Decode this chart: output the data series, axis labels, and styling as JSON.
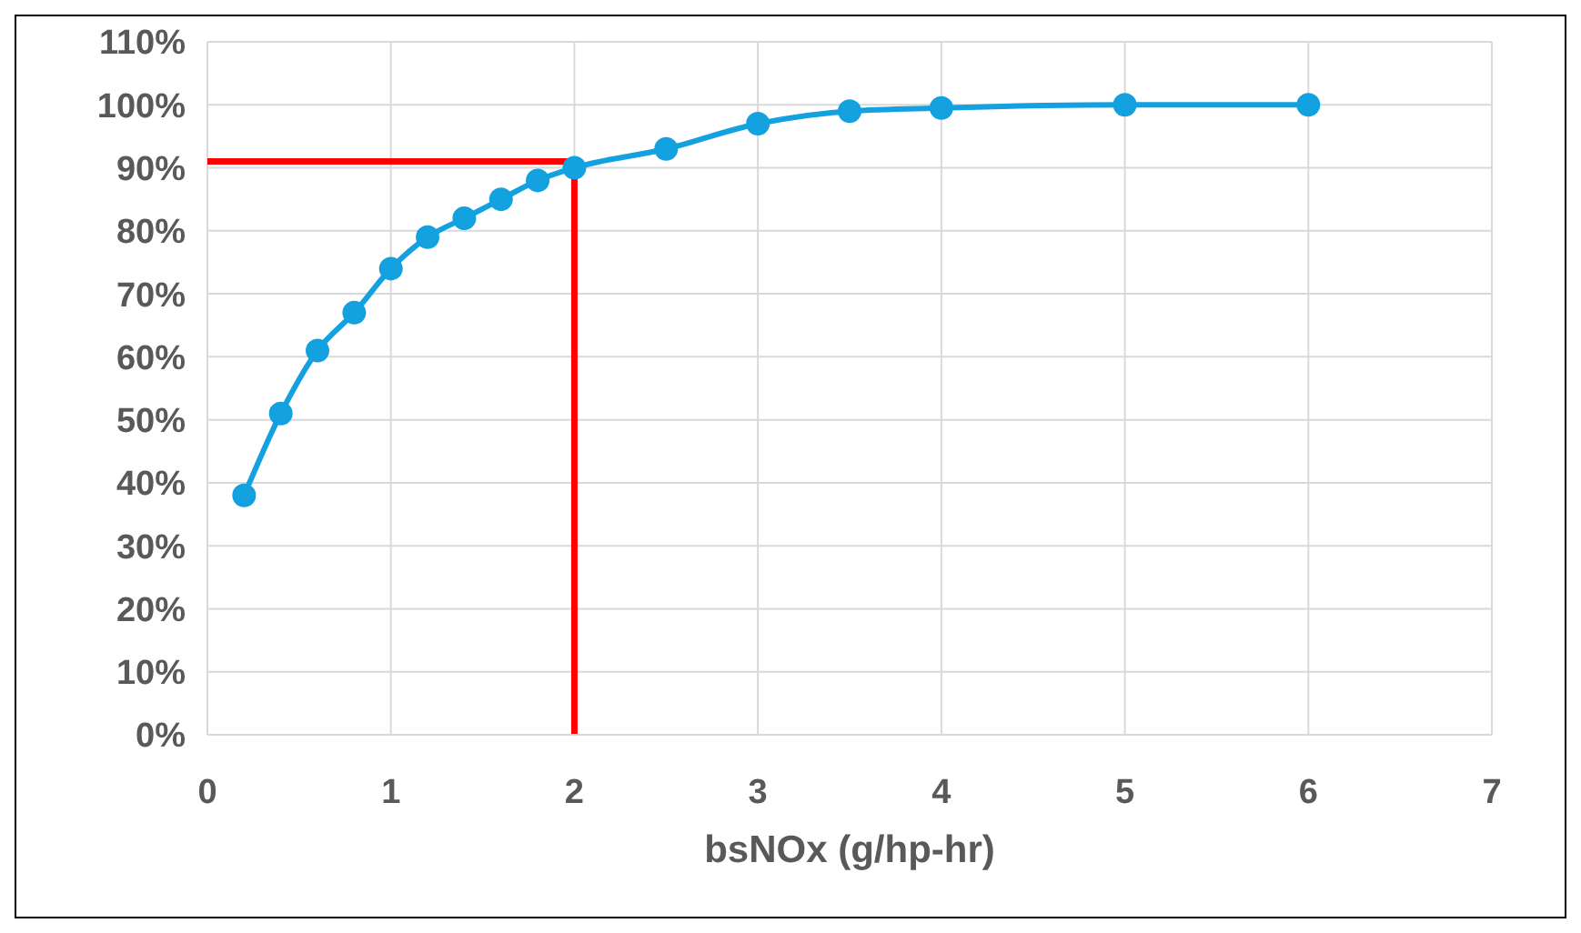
{
  "chart_data": {
    "type": "line",
    "xlabel": "bsNOx (g/hp-hr)",
    "xlim": [
      0,
      7
    ],
    "xticks": [
      0,
      1,
      2,
      3,
      4,
      5,
      6,
      7
    ],
    "ylim": [
      0,
      110
    ],
    "yticks": [
      {
        "value": 0,
        "label": "0%"
      },
      {
        "value": 10,
        "label": "10%"
      },
      {
        "value": 20,
        "label": "20%"
      },
      {
        "value": 30,
        "label": "30%"
      },
      {
        "value": 40,
        "label": "40%"
      },
      {
        "value": 50,
        "label": "50%"
      },
      {
        "value": 60,
        "label": "60%"
      },
      {
        "value": 70,
        "label": "70%"
      },
      {
        "value": 80,
        "label": "80%"
      },
      {
        "value": 90,
        "label": "90%"
      },
      {
        "value": 100,
        "label": "100%"
      },
      {
        "value": 110,
        "label": "110%"
      }
    ],
    "grid": true,
    "marker": "circle",
    "series": [
      {
        "color": "#13a1e0",
        "x": [
          0.2,
          0.4,
          0.6,
          0.8,
          1.0,
          1.2,
          1.4,
          1.6,
          1.8,
          2.0,
          2.5,
          3.0,
          3.5,
          4,
          5,
          6
        ],
        "values": [
          38,
          51,
          61,
          67,
          74,
          79,
          82,
          85,
          88,
          90,
          93,
          97,
          99,
          99.5,
          100,
          100
        ]
      },
      {
        "color": "#ff0000",
        "marker": "none",
        "x": [
          0,
          2,
          2
        ],
        "values": [
          91,
          91,
          0
        ]
      }
    ]
  }
}
